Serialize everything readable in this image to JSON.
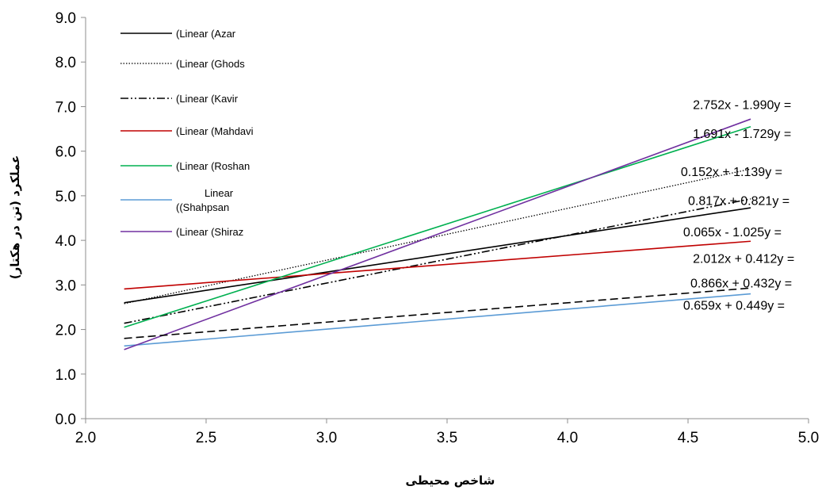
{
  "chart_data": {
    "type": "line",
    "xlabel": "شاخص محیطی",
    "ylabel": "عملکرد (تن در هکتار)",
    "xlim": [
      2.0,
      5.0
    ],
    "ylim": [
      0.0,
      9.0
    ],
    "x_ticks": [
      "2.0",
      "2.5",
      "3.0",
      "3.5",
      "4.0",
      "4.5",
      "5.0"
    ],
    "y_ticks": [
      "0.0",
      "1.0",
      "2.0",
      "3.0",
      "4.0",
      "5.0",
      "6.0",
      "7.0",
      "8.0",
      "9.0"
    ],
    "grid": false,
    "legend_position": "top-left",
    "series": [
      {
        "name": "(Linear (Azar",
        "color": "#000000",
        "dash": "solid",
        "x": [
          2.16,
          4.76
        ],
        "y": [
          2.6,
          4.73
        ]
      },
      {
        "name": "(Linear (Ghods",
        "color": "#000000",
        "dash": "dotted",
        "x": [
          2.16,
          4.76
        ],
        "y": [
          2.58,
          5.6
        ]
      },
      {
        "name": "(Linear (Kavir",
        "color": "#000000",
        "dash": "dashdotdot",
        "x": [
          2.16,
          4.76
        ],
        "y": [
          2.14,
          4.93
        ]
      },
      {
        "name": "(Linear (Mahdavi",
        "color": "#c00000",
        "dash": "solid",
        "x": [
          2.16,
          4.76
        ],
        "y": [
          2.91,
          3.98
        ]
      },
      {
        "name": "(Linear (Roshan",
        "color": "#00b050",
        "dash": "solid",
        "x": [
          2.16,
          4.76
        ],
        "y": [
          2.05,
          6.55
        ]
      },
      {
        "name": "Linear ((Shahpsan",
        "color": "#5b9bd5",
        "dash": "solid",
        "x": [
          2.16,
          4.76
        ],
        "y": [
          1.63,
          2.8
        ]
      },
      {
        "name": "(Linear (Shiraz",
        "color": "#7030a0",
        "dash": "solid",
        "x": [
          2.16,
          4.76
        ],
        "y": [
          1.55,
          6.72
        ]
      },
      {
        "name": "",
        "color": "#000000",
        "dash": "dashed",
        "legend": false,
        "x": [
          2.16,
          4.76
        ],
        "y": [
          1.8,
          2.93
        ]
      }
    ],
    "annotations": [
      {
        "text": "2.752x - 1.990y =",
        "x": 4.52,
        "y": 7.05
      },
      {
        "text": "1.691x - 1.729y =",
        "x": 4.52,
        "y": 6.4
      },
      {
        "text": "0.152x + 1.139y =",
        "x": 4.47,
        "y": 5.55
      },
      {
        "text": "0.817x + 0.821y =",
        "x": 4.5,
        "y": 4.9
      },
      {
        "text": "0.065x - 1.025y =",
        "x": 4.48,
        "y": 4.2
      },
      {
        "text": "2.012x + 0.412y =",
        "x": 4.52,
        "y": 3.6
      },
      {
        "text": "0.866x + 0.432y =",
        "x": 4.51,
        "y": 3.05
      },
      {
        "text": "0.659x + 0.449y =",
        "x": 4.48,
        "y": 2.55
      }
    ]
  }
}
